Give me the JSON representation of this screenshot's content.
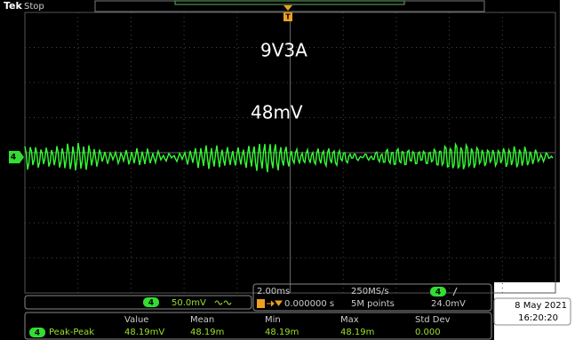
{
  "header": {
    "brand": "Tek",
    "status": "Stop"
  },
  "annotations": [
    "9V3A",
    "48mV"
  ],
  "markers": {
    "channel": "4",
    "trigger": "T"
  },
  "channel_box": {
    "channel": "4",
    "scale": "50.0mV"
  },
  "timebase": {
    "scale": "2.00ms",
    "sample_rate": "250MS/s",
    "trigger_position": "0.000000 s",
    "record_length": "5M points",
    "trigger_channel": "4",
    "trigger_level": "24.0mV"
  },
  "datetime": {
    "date": "8 May 2021",
    "time": "16:20:20"
  },
  "measurements": {
    "headers": [
      "Value",
      "Mean",
      "Min",
      "Max",
      "Std Dev"
    ],
    "rows": [
      {
        "channel": "4",
        "name": "Peak-Peak",
        "cells": [
          "48.19mV",
          "48.19m",
          "48.19m",
          "48.19m",
          "0.000"
        ]
      }
    ]
  }
}
